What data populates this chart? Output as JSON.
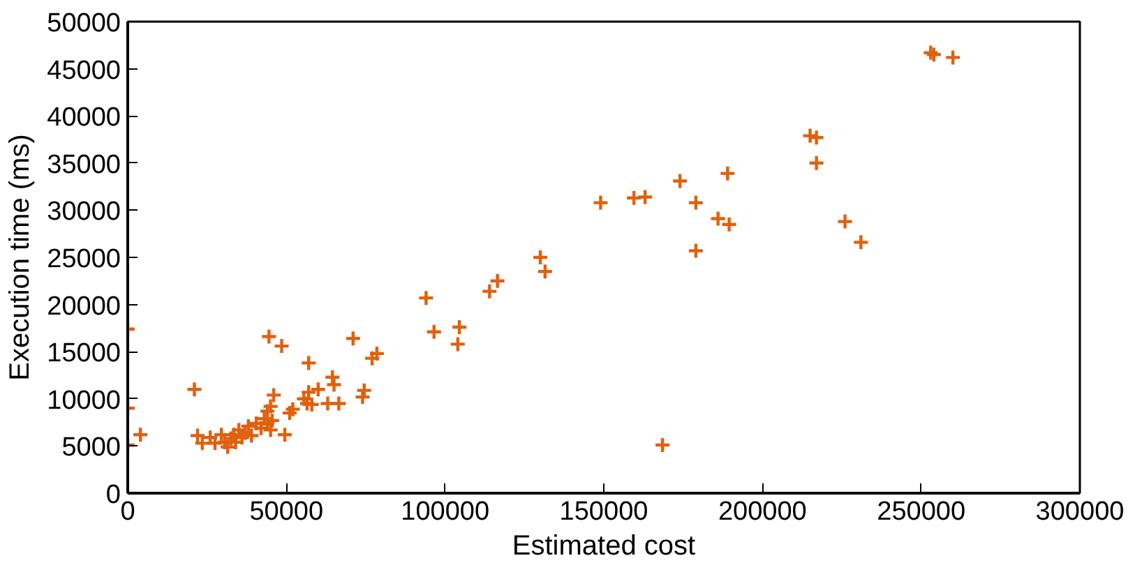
{
  "chart_data": {
    "type": "scatter",
    "xlabel": "Estimated cost",
    "ylabel": "Execution time (ms)",
    "xlim": [
      0,
      300000
    ],
    "ylim": [
      0,
      50000
    ],
    "xticks": [
      0,
      50000,
      100000,
      150000,
      200000,
      250000,
      300000
    ],
    "yticks": [
      0,
      5000,
      10000,
      15000,
      20000,
      25000,
      30000,
      35000,
      40000,
      45000,
      50000
    ],
    "grid": false,
    "marker": "cross",
    "series": [
      {
        "color": "#e0600e",
        "x": [
          0,
          0,
          0,
          4000,
          21000,
          22000,
          23500,
          26000,
          27500,
          29500,
          30500,
          31500,
          32500,
          33500,
          34000,
          35000,
          36000,
          37000,
          38000,
          39000,
          40500,
          42000,
          43000,
          44000,
          44000,
          45000,
          45500,
          46000,
          45000,
          44500,
          48500,
          49500,
          51000,
          52000,
          55500,
          56500,
          57000,
          57000,
          58000,
          60000,
          63000,
          64500,
          65000,
          66500,
          71000,
          74000,
          74500,
          77000,
          78500,
          94000,
          96500,
          104000,
          104500,
          114000,
          116500,
          130000,
          131500,
          149000,
          159500,
          163000,
          174000,
          179000,
          168500,
          179000,
          186000,
          189500,
          189000,
          215000,
          217000,
          217000,
          226000,
          231000,
          253000,
          254000,
          260000
        ],
        "values": [
          5100,
          9000,
          17400,
          6200,
          11000,
          6100,
          5300,
          5900,
          5300,
          6200,
          5400,
          4900,
          5800,
          6200,
          5400,
          6700,
          5900,
          6400,
          7100,
          6100,
          7400,
          6900,
          7900,
          7400,
          8700,
          6700,
          7700,
          10400,
          9200,
          16600,
          15600,
          6200,
          8500,
          8900,
          10000,
          9500,
          13800,
          10700,
          9400,
          11000,
          9500,
          12300,
          11500,
          9500,
          16400,
          10200,
          10900,
          14300,
          14800,
          20700,
          17100,
          15800,
          17600,
          21400,
          22500,
          25000,
          23500,
          30800,
          31300,
          31400,
          33100,
          30800,
          5100,
          25700,
          29100,
          28500,
          33900,
          37900,
          37700,
          35000,
          28800,
          26600,
          46700,
          46500,
          46200
        ]
      }
    ]
  }
}
